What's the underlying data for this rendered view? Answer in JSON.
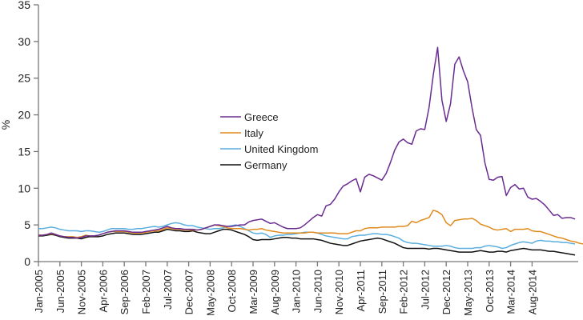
{
  "chart_data": {
    "type": "line",
    "title": "",
    "xlabel": "",
    "ylabel": "%",
    "ylim": [
      0,
      35
    ],
    "yticks": [
      0,
      5,
      10,
      15,
      20,
      25,
      30,
      35
    ],
    "x_start": "Jan-2005",
    "x_end": "Aug-2014",
    "x_frequency": "monthly",
    "xtick_labels": [
      "Jan-2005",
      "Jun-2005",
      "Nov-2005",
      "Apr-2006",
      "Sep-2006",
      "Feb-2007",
      "Jul-2007",
      "Dec-2007",
      "May-2008",
      "Oct-2008",
      "Mar-2009",
      "Aug-2009",
      "Jan-2010",
      "Jun-2010",
      "Nov-2010",
      "Apr-2011",
      "Sep-2011",
      "Feb-2012",
      "Jul-2012",
      "Dec-2012",
      "May-2013",
      "Oct-2013",
      "Mar-2014",
      "Aug-2014"
    ],
    "legend_position": "center-left",
    "grid": false,
    "series": [
      {
        "name": "Greece",
        "color": "#6a2c91",
        "values": [
          3.6,
          3.6,
          3.7,
          3.9,
          3.7,
          3.5,
          3.4,
          3.3,
          3.3,
          3.2,
          3.3,
          3.5,
          3.5,
          3.5,
          3.6,
          3.8,
          4.0,
          4.1,
          4.2,
          4.2,
          4.2,
          4.1,
          4.0,
          4.0,
          4.0,
          4.1,
          4.2,
          4.3,
          4.4,
          4.6,
          4.8,
          4.6,
          4.5,
          4.5,
          4.4,
          4.4,
          4.4,
          4.3,
          4.4,
          4.6,
          4.8,
          5.0,
          5.0,
          4.9,
          4.8,
          4.8,
          4.9,
          5.0,
          5.0,
          5.4,
          5.6,
          5.7,
          5.8,
          5.5,
          5.2,
          5.3,
          5.0,
          4.7,
          4.5,
          4.5,
          4.5,
          4.6,
          5.0,
          5.5,
          6.0,
          6.4,
          6.2,
          7.6,
          7.8,
          8.5,
          9.5,
          10.3,
          10.6,
          11.0,
          11.3,
          9.5,
          11.5,
          11.9,
          11.7,
          11.4,
          11.1,
          12.0,
          13.5,
          15.2,
          16.3,
          16.7,
          16.2,
          16.0,
          17.8,
          18.1,
          18.0,
          21.0,
          25.5,
          29.2,
          22.0,
          19.1,
          21.5,
          26.9,
          27.9,
          26.0,
          24.5,
          21.0,
          18.0,
          17.2,
          13.5,
          11.2,
          11.1,
          11.5,
          11.6,
          9.0,
          10.1,
          10.5,
          9.9,
          10.0,
          8.8,
          8.5,
          8.6,
          8.2,
          7.7,
          7.0,
          6.3,
          6.4,
          5.9,
          6.0,
          6.0,
          5.8
        ]
      },
      {
        "name": "Italy",
        "color": "#e08a1e",
        "values": [
          3.6,
          3.6,
          3.7,
          3.8,
          3.7,
          3.5,
          3.4,
          3.4,
          3.4,
          3.3,
          3.4,
          3.6,
          3.5,
          3.5,
          3.6,
          3.8,
          4.0,
          4.1,
          4.1,
          4.1,
          4.1,
          4.0,
          3.9,
          3.9,
          3.9,
          4.0,
          4.1,
          4.2,
          4.2,
          4.4,
          4.6,
          4.5,
          4.4,
          4.4,
          4.3,
          4.3,
          4.3,
          4.3,
          4.4,
          4.6,
          4.8,
          5.0,
          4.9,
          4.8,
          4.6,
          4.5,
          4.5,
          4.5,
          4.4,
          4.3,
          4.4,
          4.4,
          4.5,
          4.3,
          4.2,
          4.1,
          4.0,
          3.9,
          3.9,
          3.9,
          3.9,
          3.9,
          3.9,
          4.0,
          4.0,
          3.9,
          3.9,
          3.9,
          3.9,
          3.9,
          3.8,
          3.8,
          3.8,
          4.0,
          4.2,
          4.2,
          4.5,
          4.6,
          4.6,
          4.6,
          4.7,
          4.7,
          4.7,
          4.7,
          4.8,
          4.8,
          4.9,
          5.5,
          5.3,
          5.6,
          5.8,
          6.0,
          7.0,
          6.8,
          6.4,
          5.3,
          4.9,
          5.6,
          5.7,
          5.8,
          5.8,
          5.9,
          5.6,
          5.1,
          4.9,
          4.7,
          4.4,
          4.3,
          4.4,
          4.5,
          4.1,
          4.4,
          4.4,
          4.4,
          4.5,
          4.2,
          4.1,
          4.1,
          3.9,
          3.7,
          3.5,
          3.3,
          3.2,
          3.0,
          2.8,
          2.7,
          2.5,
          2.4
        ]
      },
      {
        "name": "United Kingdom",
        "color": "#5aaee0",
        "values": [
          4.5,
          4.5,
          4.6,
          4.7,
          4.6,
          4.4,
          4.3,
          4.2,
          4.2,
          4.2,
          4.1,
          4.2,
          4.2,
          4.1,
          4.0,
          4.1,
          4.3,
          4.5,
          4.5,
          4.5,
          4.5,
          4.4,
          4.4,
          4.5,
          4.5,
          4.6,
          4.7,
          4.8,
          4.7,
          4.8,
          5.0,
          5.2,
          5.3,
          5.2,
          5.0,
          4.9,
          4.9,
          4.7,
          4.6,
          4.5,
          4.4,
          4.5,
          4.5,
          4.6,
          4.8,
          4.9,
          5.0,
          4.8,
          4.5,
          4.2,
          3.9,
          3.8,
          3.9,
          3.7,
          3.3,
          3.5,
          3.6,
          3.6,
          3.7,
          3.7,
          3.8,
          3.9,
          4.0,
          4.0,
          4.0,
          3.9,
          3.7,
          3.5,
          3.4,
          3.3,
          3.2,
          3.1,
          3.1,
          3.4,
          3.5,
          3.6,
          3.6,
          3.7,
          3.8,
          3.8,
          3.7,
          3.7,
          3.6,
          3.4,
          3.2,
          2.8,
          2.6,
          2.5,
          2.5,
          2.4,
          2.3,
          2.2,
          2.1,
          2.1,
          2.1,
          2.2,
          2.1,
          1.9,
          1.8,
          1.8,
          1.8,
          1.8,
          1.9,
          1.9,
          2.1,
          2.2,
          2.1,
          2.0,
          1.8,
          1.9,
          2.2,
          2.4,
          2.6,
          2.7,
          2.6,
          2.5,
          2.8,
          2.9,
          2.8,
          2.8,
          2.7,
          2.7,
          2.6,
          2.6,
          2.5,
          2.4
        ]
      },
      {
        "name": "Germany",
        "color": "#111111",
        "values": [
          3.5,
          3.5,
          3.6,
          3.7,
          3.6,
          3.4,
          3.3,
          3.2,
          3.2,
          3.2,
          3.1,
          3.3,
          3.4,
          3.4,
          3.4,
          3.5,
          3.7,
          3.8,
          3.9,
          3.9,
          3.9,
          3.8,
          3.7,
          3.7,
          3.7,
          3.8,
          3.9,
          4.0,
          4.0,
          4.2,
          4.4,
          4.3,
          4.2,
          4.2,
          4.1,
          4.1,
          4.2,
          4.0,
          3.9,
          3.8,
          3.8,
          4.0,
          4.2,
          4.4,
          4.4,
          4.3,
          4.1,
          3.9,
          3.7,
          3.4,
          3.0,
          2.9,
          3.0,
          3.0,
          3.0,
          3.1,
          3.2,
          3.3,
          3.3,
          3.2,
          3.2,
          3.1,
          3.1,
          3.1,
          3.1,
          3.0,
          2.9,
          2.7,
          2.5,
          2.4,
          2.3,
          2.2,
          2.2,
          2.4,
          2.6,
          2.8,
          2.9,
          3.0,
          3.1,
          3.2,
          3.1,
          2.9,
          2.7,
          2.5,
          2.2,
          1.9,
          1.8,
          1.8,
          1.8,
          1.8,
          1.8,
          1.7,
          1.8,
          1.8,
          1.7,
          1.6,
          1.5,
          1.4,
          1.3,
          1.3,
          1.3,
          1.3,
          1.4,
          1.5,
          1.4,
          1.3,
          1.3,
          1.4,
          1.4,
          1.3,
          1.5,
          1.6,
          1.7,
          1.8,
          1.7,
          1.6,
          1.6,
          1.6,
          1.5,
          1.4,
          1.4,
          1.3,
          1.2,
          1.1,
          1.0,
          0.9
        ]
      }
    ]
  }
}
